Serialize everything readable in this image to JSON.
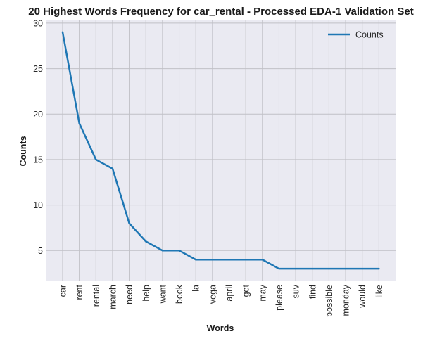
{
  "chart_data": {
    "type": "line",
    "title": "20 Highest Words Frequency for car_rental - Processed EDA-1 Validation Set",
    "xlabel": "Words",
    "ylabel": "Counts",
    "categories": [
      "car",
      "rent",
      "rental",
      "march",
      "need",
      "help",
      "want",
      "book",
      "la",
      "vega",
      "april",
      "get",
      "may",
      "please",
      "suv",
      "find",
      "possible",
      "monday",
      "would",
      "like"
    ],
    "series": [
      {
        "name": "Counts",
        "values": [
          29,
          19,
          15,
          14,
          8,
          6,
          5,
          5,
          4,
          4,
          4,
          4,
          4,
          3,
          3,
          3,
          3,
          3,
          3,
          3
        ],
        "color": "#1f77b4"
      }
    ],
    "ylim": [
      1.7,
      30.3
    ],
    "yticks": [
      5,
      10,
      15,
      20,
      25,
      30
    ],
    "grid": true,
    "legend_position": "top-right",
    "background_color": "#eaeaf2",
    "grid_color": "#c0c0c6"
  }
}
